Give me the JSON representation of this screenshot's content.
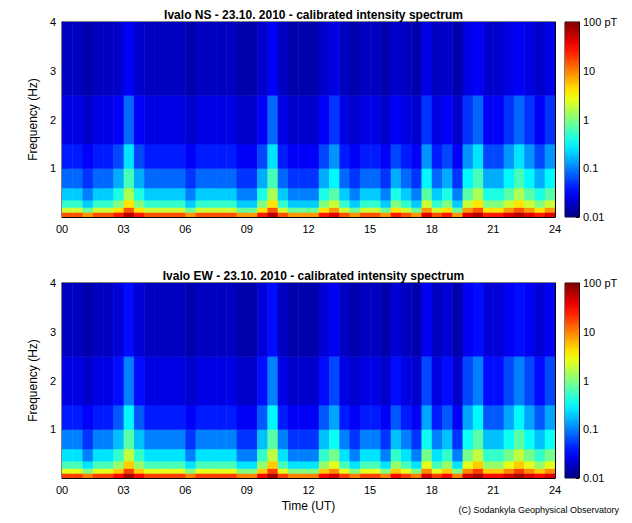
{
  "chart_data": [
    {
      "type": "heatmap",
      "title": "Ivalo NS - 23.10. 2010 - calibrated intensity spectrum",
      "ylabel": "Frequency (Hz)",
      "x_edges": [
        0,
        0.5,
        1,
        1.5,
        2,
        2.5,
        3,
        3.5,
        4,
        4.5,
        5,
        5.5,
        6,
        6.5,
        7,
        7.5,
        8,
        8.5,
        9,
        9.5,
        10,
        10.5,
        11,
        11.5,
        12,
        12.5,
        13,
        13.5,
        14,
        14.5,
        15,
        15.5,
        16,
        16.5,
        17,
        17.5,
        18,
        18.5,
        19,
        19.5,
        20,
        20.5,
        21,
        21.5,
        22,
        22.5,
        23,
        23.5,
        24
      ],
      "y_edges": [
        0,
        0.1,
        0.2,
        0.35,
        0.6,
        1,
        1.5,
        2.5,
        4
      ],
      "cells": [
        [
          15,
          15,
          8,
          15,
          15,
          25,
          60,
          25,
          15,
          15,
          15,
          15,
          8,
          15,
          15,
          15,
          15,
          8,
          8,
          25,
          60,
          15,
          8,
          8,
          8,
          25,
          40,
          15,
          8,
          15,
          15,
          8,
          25,
          15,
          8,
          40,
          15,
          25,
          8,
          40,
          60,
          25,
          25,
          40,
          60,
          40,
          25,
          40
        ],
        [
          2,
          2,
          0.8,
          2,
          2,
          4,
          15,
          4,
          2,
          2,
          2,
          2,
          0.8,
          2,
          2,
          2,
          2,
          0.8,
          0.8,
          4,
          15,
          2,
          0.8,
          0.8,
          0.8,
          4,
          8,
          2,
          0.8,
          2,
          2,
          0.8,
          4,
          2,
          0.8,
          8,
          2,
          4,
          0.8,
          8,
          15,
          4,
          4,
          8,
          15,
          8,
          4,
          8
        ],
        [
          0.5,
          0.5,
          0.2,
          0.5,
          0.5,
          1,
          4,
          1,
          0.5,
          0.5,
          0.5,
          0.5,
          0.2,
          0.5,
          0.5,
          0.5,
          0.5,
          0.2,
          0.2,
          1,
          4,
          0.5,
          0.2,
          0.2,
          0.2,
          1,
          2,
          0.5,
          0.2,
          0.5,
          0.5,
          0.2,
          1,
          0.5,
          0.2,
          2,
          0.5,
          1,
          0.2,
          2,
          4,
          1,
          1,
          2,
          4,
          2,
          1,
          2
        ],
        [
          0.2,
          0.2,
          0.1,
          0.2,
          0.2,
          0.4,
          1.5,
          0.4,
          0.2,
          0.2,
          0.2,
          0.2,
          0.1,
          0.2,
          0.2,
          0.2,
          0.2,
          0.1,
          0.1,
          0.4,
          1.5,
          0.2,
          0.1,
          0.1,
          0.1,
          0.4,
          0.7,
          0.2,
          0.1,
          0.2,
          0.2,
          0.1,
          0.4,
          0.2,
          0.1,
          0.7,
          0.2,
          0.4,
          0.1,
          0.7,
          1.5,
          0.4,
          0.4,
          0.7,
          1.5,
          0.7,
          0.4,
          0.7
        ],
        [
          0.08,
          0.08,
          0.05,
          0.08,
          0.08,
          0.15,
          0.6,
          0.15,
          0.08,
          0.08,
          0.08,
          0.08,
          0.05,
          0.08,
          0.08,
          0.08,
          0.08,
          0.05,
          0.05,
          0.15,
          0.6,
          0.08,
          0.05,
          0.05,
          0.05,
          0.15,
          0.3,
          0.08,
          0.05,
          0.08,
          0.08,
          0.05,
          0.15,
          0.08,
          0.05,
          0.3,
          0.08,
          0.15,
          0.05,
          0.3,
          0.6,
          0.15,
          0.15,
          0.3,
          0.6,
          0.3,
          0.15,
          0.3
        ],
        [
          0.04,
          0.04,
          0.03,
          0.04,
          0.04,
          0.06,
          0.25,
          0.06,
          0.04,
          0.04,
          0.04,
          0.04,
          0.03,
          0.04,
          0.04,
          0.04,
          0.04,
          0.03,
          0.03,
          0.06,
          0.25,
          0.04,
          0.03,
          0.03,
          0.03,
          0.06,
          0.12,
          0.04,
          0.03,
          0.04,
          0.04,
          0.03,
          0.06,
          0.04,
          0.03,
          0.12,
          0.04,
          0.06,
          0.03,
          0.12,
          0.25,
          0.06,
          0.06,
          0.12,
          0.25,
          0.12,
          0.06,
          0.12
        ],
        [
          0.025,
          0.025,
          0.02,
          0.025,
          0.025,
          0.03,
          0.08,
          0.03,
          0.025,
          0.025,
          0.025,
          0.025,
          0.02,
          0.025,
          0.025,
          0.025,
          0.025,
          0.02,
          0.02,
          0.03,
          0.08,
          0.025,
          0.02,
          0.02,
          0.02,
          0.03,
          0.05,
          0.025,
          0.02,
          0.025,
          0.025,
          0.02,
          0.03,
          0.025,
          0.02,
          0.05,
          0.025,
          0.03,
          0.02,
          0.05,
          0.08,
          0.03,
          0.03,
          0.05,
          0.08,
          0.05,
          0.03,
          0.05
        ],
        [
          0.018,
          0.018,
          0.015,
          0.018,
          0.018,
          0.02,
          0.03,
          0.02,
          0.018,
          0.018,
          0.018,
          0.018,
          0.015,
          0.018,
          0.018,
          0.018,
          0.018,
          0.015,
          0.015,
          0.02,
          0.03,
          0.018,
          0.015,
          0.015,
          0.015,
          0.02,
          0.025,
          0.018,
          0.015,
          0.018,
          0.018,
          0.015,
          0.02,
          0.018,
          0.015,
          0.025,
          0.018,
          0.02,
          0.015,
          0.025,
          0.03,
          0.02,
          0.02,
          0.025,
          0.03,
          0.025,
          0.02,
          0.025
        ]
      ],
      "xlim": [
        0,
        24
      ],
      "xticks": [
        {
          "value": 0,
          "label": "00"
        },
        {
          "value": 3,
          "label": "03"
        },
        {
          "value": 6,
          "label": "06"
        },
        {
          "value": 9,
          "label": "09"
        },
        12,
        15,
        18,
        21,
        24
      ],
      "ylim": [
        0,
        4
      ],
      "yticks": [
        1,
        2,
        3,
        4
      ],
      "colorbar": {
        "range": [
          0.01,
          100
        ],
        "ticks": [
          0.01,
          0.1,
          1,
          10,
          {
            "value": 100,
            "label": "100 pT"
          }
        ],
        "log": true
      }
    },
    {
      "type": "heatmap",
      "title": "Ivalo EW - 23.10. 2010 - calibrated intensity spectrum",
      "xlabel": "Time (UT)",
      "ylabel": "Frequency (Hz)",
      "annotation": "(C) Sodankyla Geophysical Observatory",
      "x_edges": [
        0,
        0.5,
        1,
        1.5,
        2,
        2.5,
        3,
        3.5,
        4,
        4.5,
        5,
        5.5,
        6,
        6.5,
        7,
        7.5,
        8,
        8.5,
        9,
        9.5,
        10,
        10.5,
        11,
        11.5,
        12,
        12.5,
        13,
        13.5,
        14,
        14.5,
        15,
        15.5,
        16,
        16.5,
        17,
        17.5,
        18,
        18.5,
        19,
        19.5,
        20,
        20.5,
        21,
        21.5,
        22,
        22.5,
        23,
        23.5,
        24
      ],
      "y_edges": [
        0,
        0.1,
        0.2,
        0.35,
        0.6,
        1,
        1.5,
        2.5,
        4
      ],
      "cells": [
        [
          18,
          18,
          10,
          18,
          18,
          30,
          70,
          30,
          18,
          18,
          18,
          18,
          10,
          18,
          18,
          18,
          18,
          10,
          10,
          30,
          70,
          18,
          10,
          10,
          10,
          30,
          45,
          18,
          10,
          18,
          18,
          10,
          30,
          18,
          10,
          45,
          18,
          30,
          10,
          45,
          70,
          30,
          30,
          45,
          70,
          45,
          30,
          45
        ],
        [
          2.5,
          2.5,
          1,
          2.5,
          2.5,
          5,
          18,
          5,
          2.5,
          2.5,
          2.5,
          2.5,
          1,
          2.5,
          2.5,
          2.5,
          2.5,
          1,
          1,
          5,
          18,
          2.5,
          1,
          1,
          1,
          5,
          9,
          2.5,
          1,
          2.5,
          2.5,
          1,
          5,
          2.5,
          1,
          9,
          2.5,
          5,
          1,
          9,
          18,
          5,
          5,
          9,
          18,
          9,
          5,
          9
        ],
        [
          0.6,
          0.6,
          0.25,
          0.6,
          0.6,
          1.2,
          5,
          1.2,
          0.6,
          0.6,
          0.6,
          0.6,
          0.25,
          0.6,
          0.6,
          0.6,
          0.6,
          0.25,
          0.25,
          1.2,
          5,
          0.6,
          0.25,
          0.25,
          0.25,
          1.2,
          2.5,
          0.6,
          0.25,
          0.6,
          0.6,
          0.25,
          1.2,
          0.6,
          0.25,
          2.5,
          0.6,
          1.2,
          0.25,
          2.5,
          5,
          1.2,
          1.2,
          2.5,
          5,
          2.5,
          1.2,
          2.5
        ],
        [
          0.25,
          0.25,
          0.1,
          0.25,
          0.25,
          0.5,
          1.8,
          0.5,
          0.25,
          0.25,
          0.25,
          0.25,
          0.1,
          0.25,
          0.25,
          0.25,
          0.25,
          0.1,
          0.1,
          0.5,
          1.8,
          0.25,
          0.1,
          0.1,
          0.1,
          0.5,
          0.9,
          0.25,
          0.1,
          0.25,
          0.25,
          0.1,
          0.5,
          0.25,
          0.1,
          0.9,
          0.25,
          0.5,
          0.1,
          0.9,
          1.8,
          0.5,
          0.5,
          0.9,
          1.8,
          0.9,
          0.5,
          0.9
        ],
        [
          0.1,
          0.1,
          0.05,
          0.1,
          0.1,
          0.18,
          0.7,
          0.18,
          0.1,
          0.1,
          0.1,
          0.1,
          0.05,
          0.1,
          0.1,
          0.1,
          0.1,
          0.05,
          0.05,
          0.18,
          0.7,
          0.1,
          0.05,
          0.05,
          0.05,
          0.18,
          0.35,
          0.1,
          0.05,
          0.1,
          0.1,
          0.05,
          0.18,
          0.1,
          0.05,
          0.35,
          0.1,
          0.18,
          0.05,
          0.35,
          0.7,
          0.18,
          0.18,
          0.35,
          0.7,
          0.35,
          0.18,
          0.35
        ],
        [
          0.04,
          0.04,
          0.03,
          0.04,
          0.04,
          0.07,
          0.3,
          0.07,
          0.04,
          0.04,
          0.04,
          0.04,
          0.03,
          0.04,
          0.04,
          0.04,
          0.04,
          0.03,
          0.03,
          0.07,
          0.3,
          0.04,
          0.03,
          0.03,
          0.03,
          0.07,
          0.14,
          0.04,
          0.03,
          0.04,
          0.04,
          0.03,
          0.07,
          0.04,
          0.03,
          0.14,
          0.04,
          0.07,
          0.03,
          0.14,
          0.3,
          0.07,
          0.07,
          0.14,
          0.3,
          0.14,
          0.07,
          0.14
        ],
        [
          0.025,
          0.025,
          0.02,
          0.025,
          0.025,
          0.035,
          0.1,
          0.035,
          0.025,
          0.025,
          0.025,
          0.025,
          0.02,
          0.025,
          0.025,
          0.025,
          0.025,
          0.02,
          0.02,
          0.035,
          0.1,
          0.025,
          0.02,
          0.02,
          0.02,
          0.035,
          0.06,
          0.025,
          0.02,
          0.025,
          0.025,
          0.02,
          0.035,
          0.025,
          0.02,
          0.06,
          0.025,
          0.035,
          0.02,
          0.06,
          0.1,
          0.035,
          0.035,
          0.06,
          0.1,
          0.06,
          0.035,
          0.06
        ],
        [
          0.018,
          0.018,
          0.015,
          0.018,
          0.018,
          0.022,
          0.035,
          0.022,
          0.018,
          0.018,
          0.018,
          0.018,
          0.015,
          0.018,
          0.018,
          0.018,
          0.018,
          0.015,
          0.015,
          0.022,
          0.035,
          0.018,
          0.015,
          0.015,
          0.015,
          0.022,
          0.028,
          0.018,
          0.015,
          0.018,
          0.018,
          0.015,
          0.022,
          0.018,
          0.015,
          0.028,
          0.018,
          0.022,
          0.015,
          0.028,
          0.035,
          0.022,
          0.022,
          0.028,
          0.035,
          0.028,
          0.022,
          0.028
        ]
      ],
      "xlim": [
        0,
        24
      ],
      "xticks": [
        {
          "value": 0,
          "label": "00"
        },
        {
          "value": 3,
          "label": "03"
        },
        {
          "value": 6,
          "label": "06"
        },
        {
          "value": 9,
          "label": "09"
        },
        12,
        15,
        18,
        21,
        24
      ],
      "ylim": [
        0,
        4
      ],
      "yticks": [
        1,
        2,
        3,
        4
      ],
      "colorbar": {
        "range": [
          0.01,
          100
        ],
        "ticks": [
          0.01,
          0.1,
          1,
          10,
          {
            "value": 100,
            "label": "100 pT"
          }
        ],
        "log": true
      }
    }
  ]
}
